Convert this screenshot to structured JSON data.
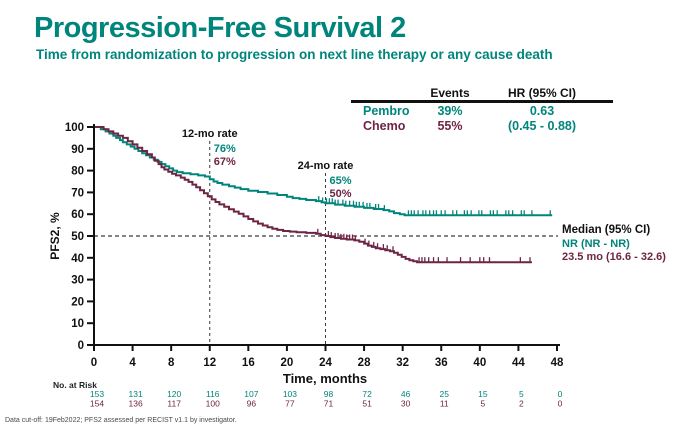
{
  "title": "Progression-Free Survival 2",
  "subtitle": "Time from randomization to progression on next line therapy or any cause death",
  "colors": {
    "pembro": "#00857C",
    "chemo": "#6E2443",
    "axis": "#111111",
    "dashed": "#3a3a3a",
    "footnote_gray": "#4a4a4a"
  },
  "summary_table": {
    "header_events": "Events",
    "header_hr": "HR (95% CI)",
    "pembro_name": "Pembro",
    "pembro_events": "39%",
    "chemo_name": "Chemo",
    "chemo_events": "55%",
    "hr_value": "0.63",
    "hr_ci": "(0.45 - 0.88)"
  },
  "median_block": {
    "label": "Median (95% CI)",
    "pembro": "NR (NR - NR)",
    "chemo": "23.5 mo (16.6 - 32.6)"
  },
  "risk_table": {
    "label": "No. at Risk",
    "months": [
      0,
      4,
      8,
      12,
      16,
      20,
      24,
      28,
      32,
      36,
      40,
      44,
      48
    ],
    "rows": [
      {
        "name": "Pembro",
        "color": "pembro",
        "values": [
          153,
          131,
          120,
          116,
          107,
          103,
          98,
          72,
          46,
          25,
          15,
          5,
          0
        ]
      },
      {
        "name": "Chemo",
        "color": "chemo",
        "values": [
          154,
          136,
          117,
          100,
          96,
          77,
          71,
          51,
          30,
          11,
          5,
          2,
          0
        ]
      }
    ]
  },
  "footnote": "Data cut-off: 19Feb2022; PFS2 assessed per RECIST v1.1 by investigator.",
  "chart_data": {
    "type": "line",
    "subtype": "kaplan-meier-step",
    "title": "Progression-Free Survival 2",
    "xlabel": "Time, months",
    "ylabel": "PFS2, %",
    "xlim": [
      0,
      48
    ],
    "ylim": [
      0,
      100
    ],
    "xticks": [
      0,
      4,
      8,
      12,
      16,
      20,
      24,
      28,
      32,
      36,
      40,
      44,
      48
    ],
    "yticks": [
      0,
      10,
      20,
      30,
      40,
      50,
      60,
      70,
      80,
      90,
      100
    ],
    "grid": false,
    "legend_position": "none",
    "reference_line_y": 50,
    "annotations": [
      {
        "id": "rate12",
        "label": "12-mo rate",
        "month": 12,
        "values": [
          {
            "series": "Pembro",
            "text": "76%",
            "color": "pembro"
          },
          {
            "series": "Chemo",
            "text": "67%",
            "color": "chemo"
          }
        ]
      },
      {
        "id": "rate24",
        "label": "24-mo rate",
        "month": 24,
        "values": [
          {
            "series": "Pembro",
            "text": "65%",
            "color": "pembro"
          },
          {
            "series": "Chemo",
            "text": "50%",
            "color": "chemo"
          }
        ]
      }
    ],
    "series": [
      {
        "name": "Pembro",
        "color": "pembro",
        "median": "NR (NR - NR)",
        "events": "39%",
        "rate_12mo": 76,
        "rate_24mo": 65,
        "steps": [
          [
            0,
            100
          ],
          [
            0.7,
            99
          ],
          [
            1.2,
            98
          ],
          [
            1.6,
            97
          ],
          [
            2,
            96
          ],
          [
            2.3,
            95
          ],
          [
            2.7,
            94
          ],
          [
            3,
            93
          ],
          [
            3.4,
            92
          ],
          [
            3.8,
            91
          ],
          [
            4.2,
            90
          ],
          [
            4.6,
            89
          ],
          [
            5,
            88
          ],
          [
            5.4,
            87
          ],
          [
            5.8,
            86
          ],
          [
            6.2,
            85
          ],
          [
            6.6,
            84
          ],
          [
            7,
            83
          ],
          [
            7.4,
            82
          ],
          [
            7.8,
            81
          ],
          [
            8.2,
            80
          ],
          [
            8.6,
            79.3
          ],
          [
            9.2,
            78.8
          ],
          [
            10,
            78.3
          ],
          [
            10.8,
            77.8
          ],
          [
            11.5,
            77.3
          ],
          [
            12,
            76
          ],
          [
            12.4,
            75
          ],
          [
            12.8,
            74.3
          ],
          [
            13.3,
            73.6
          ],
          [
            14,
            72.8
          ],
          [
            14.6,
            72.2
          ],
          [
            15.2,
            71.5
          ],
          [
            16,
            70.8
          ],
          [
            17,
            70.2
          ],
          [
            18,
            69.5
          ],
          [
            19,
            68.8
          ],
          [
            20,
            68
          ],
          [
            20.6,
            67.4
          ],
          [
            21.3,
            67
          ],
          [
            22,
            66.5
          ],
          [
            23,
            66
          ],
          [
            23.6,
            65.4
          ],
          [
            24,
            65
          ],
          [
            25,
            64.4
          ],
          [
            26,
            63.9
          ],
          [
            27,
            63.4
          ],
          [
            28,
            62.9
          ],
          [
            29,
            62.4
          ],
          [
            30,
            61.9
          ],
          [
            30.6,
            61.3
          ],
          [
            31.1,
            60.5
          ],
          [
            31.7,
            60
          ],
          [
            32.2,
            59.5
          ],
          [
            47.5,
            59.5
          ]
        ],
        "censor_months": [
          23.3,
          23.7,
          24.1,
          24.4,
          24.7,
          25.0,
          25.3,
          25.8,
          26.1,
          26.5,
          26.9,
          27.2,
          27.5,
          27.9,
          28.3,
          28.6,
          29.2,
          29.5,
          30.1,
          32.6,
          32.9,
          33.2,
          33.6,
          34.1,
          34.4,
          34.8,
          35.2,
          35.5,
          36.0,
          36.4,
          37.2,
          37.6,
          38.4,
          38.7,
          39.1,
          39.9,
          40.2,
          41.1,
          41.4,
          41.8,
          42.7,
          43.0,
          43.4,
          44.3,
          44.6,
          45.4,
          47.3
        ]
      },
      {
        "name": "Chemo",
        "color": "chemo",
        "median": "23.5 mo (16.6 - 32.6)",
        "events": "55%",
        "rate_12mo": 67,
        "rate_24mo": 50,
        "steps": [
          [
            0,
            100
          ],
          [
            1,
            99
          ],
          [
            1.5,
            98
          ],
          [
            2,
            97
          ],
          [
            2.5,
            96
          ],
          [
            3,
            95
          ],
          [
            3.5,
            93.5
          ],
          [
            4,
            92
          ],
          [
            4.5,
            90.5
          ],
          [
            5,
            89
          ],
          [
            5.5,
            87.5
          ],
          [
            6,
            86
          ],
          [
            6.3,
            84.5
          ],
          [
            6.7,
            83
          ],
          [
            7,
            81.5
          ],
          [
            7.3,
            80.5
          ],
          [
            7.7,
            79.5
          ],
          [
            8.1,
            78.6
          ],
          [
            8.5,
            77.8
          ],
          [
            9,
            76.8
          ],
          [
            9.4,
            75.8
          ],
          [
            9.8,
            74.8
          ],
          [
            10.2,
            73.6
          ],
          [
            10.6,
            72.4
          ],
          [
            11,
            71
          ],
          [
            11.4,
            69.6
          ],
          [
            11.8,
            68.2
          ],
          [
            12.2,
            66.8
          ],
          [
            12.6,
            65.6
          ],
          [
            13,
            64.5
          ],
          [
            13.5,
            63.4
          ],
          [
            14,
            62.3
          ],
          [
            14.5,
            61.2
          ],
          [
            15,
            60.2
          ],
          [
            15.5,
            59
          ],
          [
            16,
            57.8
          ],
          [
            16.5,
            56.7
          ],
          [
            17,
            55.7
          ],
          [
            17.5,
            54.8
          ],
          [
            18,
            54
          ],
          [
            18.5,
            53.3
          ],
          [
            19,
            52.8
          ],
          [
            19.6,
            52.3
          ],
          [
            20.3,
            52
          ],
          [
            21,
            51.7
          ],
          [
            22,
            51.4
          ],
          [
            23,
            51
          ],
          [
            23.5,
            50.4
          ],
          [
            24,
            50
          ],
          [
            24.5,
            49.5
          ],
          [
            25,
            49.1
          ],
          [
            25.6,
            48.7
          ],
          [
            26.2,
            48.4
          ],
          [
            27,
            48
          ],
          [
            27.5,
            47.4
          ],
          [
            28,
            46.5
          ],
          [
            28.4,
            45.6
          ],
          [
            28.8,
            45
          ],
          [
            29.2,
            44.4
          ],
          [
            29.7,
            44
          ],
          [
            30.2,
            43.5
          ],
          [
            30.7,
            43
          ],
          [
            31.1,
            42.3
          ],
          [
            31.5,
            41.4
          ],
          [
            31.9,
            40.4
          ],
          [
            32.3,
            39.5
          ],
          [
            32.7,
            38.9
          ],
          [
            33.1,
            38.4
          ],
          [
            33.5,
            38
          ],
          [
            45.4,
            38
          ]
        ],
        "censor_months": [
          23.2,
          24.3,
          24.6,
          25.0,
          25.3,
          25.6,
          25.9,
          26.2,
          26.5,
          26.8,
          27.1,
          28.1,
          28.5,
          29.0,
          29.4,
          30.0,
          30.4,
          31.0,
          33.7,
          34.0,
          34.3,
          34.7,
          35.2,
          35.7,
          36.6,
          38.0,
          39.0,
          40.0,
          40.4,
          41.0,
          44.2,
          45.2
        ]
      }
    ]
  }
}
